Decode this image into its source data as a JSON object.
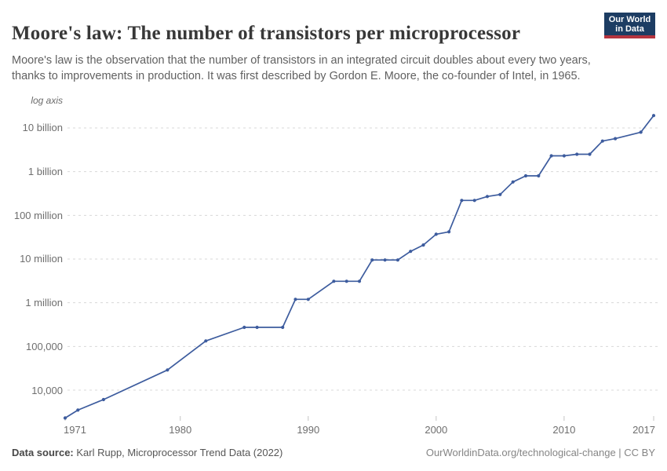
{
  "header": {
    "title": "Moore's law: The number of transistors per microprocessor",
    "subtitle": "Moore's law is the observation that the number of transistors in an integrated circuit doubles about every two years, thanks to improvements in production. It was first described by Gordon E. Moore, the co-founder of Intel, in 1965.",
    "logo": {
      "line1": "Our World",
      "line2": "in Data",
      "bg_color": "#1d3d63",
      "stripe_color": "#b5343f"
    }
  },
  "chart_data": {
    "type": "line",
    "title": "Moore's law: The number of transistors per microprocessor",
    "xlabel": "",
    "ylabel": "",
    "axis_note": "log axis",
    "yscale": "log",
    "grid": "dashed-horizontal",
    "legend_position": "none",
    "line_color": "#3d5c9e",
    "x_range": [
      1971,
      2017
    ],
    "ylim": [
      2000,
      20000000000
    ],
    "x_ticks": [
      {
        "year": 1971,
        "label": "1971"
      },
      {
        "year": 1980,
        "label": "1980"
      },
      {
        "year": 1990,
        "label": "1990"
      },
      {
        "year": 2000,
        "label": "2000"
      },
      {
        "year": 2010,
        "label": "2010"
      },
      {
        "year": 2017,
        "label": "2017"
      }
    ],
    "y_ticks": [
      {
        "value": 10000000000,
        "label": "10 billion"
      },
      {
        "value": 1000000000,
        "label": "1 billion"
      },
      {
        "value": 100000000,
        "label": "100 million"
      },
      {
        "value": 10000000,
        "label": "10 million"
      },
      {
        "value": 1000000,
        "label": "1 million"
      },
      {
        "value": 100000,
        "label": "100,000"
      },
      {
        "value": 10000,
        "label": "10,000"
      }
    ],
    "series": [
      {
        "name": "Transistors per microprocessor",
        "x": [
          1971,
          1972,
          1974,
          1979,
          1982,
          1985,
          1986,
          1988,
          1989,
          1990,
          1992,
          1993,
          1994,
          1995,
          1996,
          1997,
          1998,
          1999,
          2000,
          2001,
          2002,
          2003,
          2004,
          2005,
          2006,
          2007,
          2008,
          2009,
          2010,
          2011,
          2012,
          2013,
          2014,
          2016,
          2017
        ],
        "values": [
          2300,
          3500,
          6100,
          29000,
          134000,
          274000,
          274000,
          274000,
          1200000,
          1200000,
          3100000,
          3100000,
          3100000,
          9500000,
          9500000,
          9500000,
          15000000,
          21000000,
          37000000,
          42000000,
          220000000,
          220000000,
          270000000,
          300000000,
          580000000,
          800000000,
          800000000,
          2300000000,
          2300000000,
          2500000000,
          2500000000,
          5000000000,
          5700000000,
          8000000000,
          19200000000
        ]
      }
    ]
  },
  "footer": {
    "source_label": "Data source:",
    "source_text": " Karl Rupp, Microprocessor Trend Data (2022)",
    "link_text": "OurWorldinData.org/technological-change | CC BY"
  }
}
